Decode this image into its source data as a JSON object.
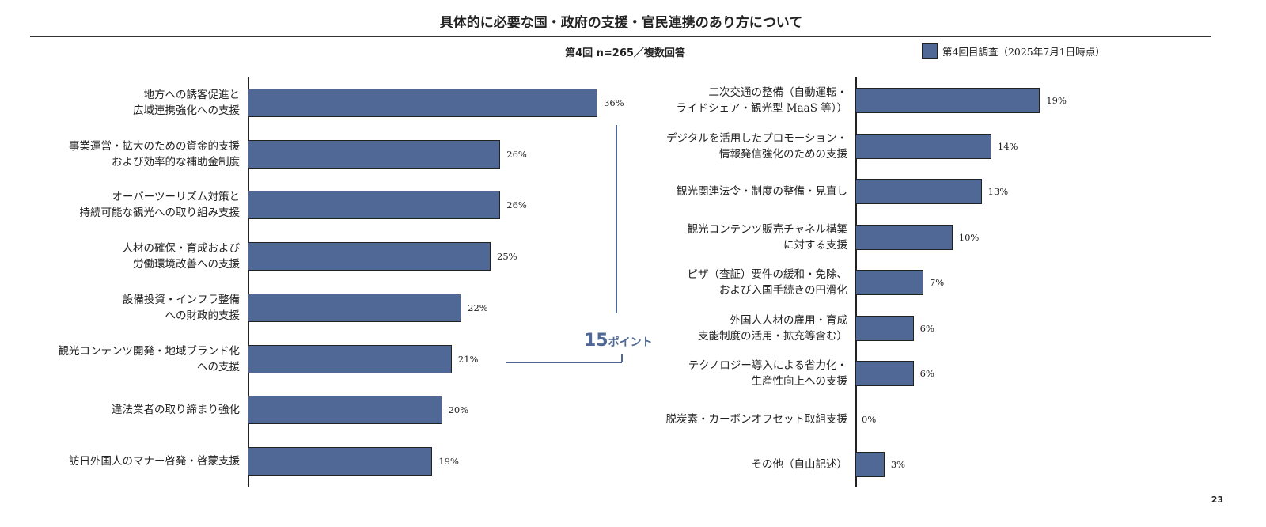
{
  "title": "具体的に必要な国・政府の支援・官民連携のあり方について",
  "subtitle": "第4回 n=265／複数回答",
  "page_number": "23",
  "annotation": {
    "number": "15",
    "unit": "ポイント"
  },
  "chart_data": [
    {
      "type": "bar",
      "orientation": "horizontal",
      "series": [
        {
          "name": "第4回目調査（2025年7月1日時点）",
          "color": "#4f6896"
        }
      ],
      "categories": [
        "地方への誘客促進と\n広域連携強化への支援",
        "事業運営・拡大のための資金的支援\nおよび効率的な補助金制度",
        "オーバーツーリズム対策と\n持続可能な観光への取り組み支援",
        "人材の確保・育成および\n労働環境改善への支援",
        "設備投資・インフラ整備\nへの財政的支援",
        "観光コンテンツ開発・地域ブランド化\nへの支援",
        "違法業者の取り締まり強化",
        "訪日外国人のマナー啓発・啓蒙支援"
      ],
      "values": [
        36,
        26,
        26,
        25,
        22,
        21,
        20,
        19
      ],
      "labels": [
        "36%",
        "26%",
        "26%",
        "25%",
        "22%",
        "21%",
        "20%",
        "19%"
      ]
    },
    {
      "type": "bar",
      "orientation": "horizontal",
      "series": [
        {
          "name": "第4回目調査（2025年7月1日時点）",
          "color": "#4f6896"
        }
      ],
      "categories": [
        "二次交通の整備（自動運転・\nライドシェア・観光型 MaaS 等））",
        "デジタルを活用したプロモーション・\n情報発信強化のための支援",
        "観光関連法令・制度の整備・見直し",
        "観光コンテンツ販売チャネル構築\nに対する支援",
        "ビザ（査証）要件の緩和・免除、\nおよび入国手続きの円滑化",
        "外国人人材の雇用・育成\n支能制度の活用・拡充等含む）",
        "テクノロジー導入による省力化・\n生産性向上への支援",
        "脱炭素・カーボンオフセット取組支援",
        "その他（自由記述）"
      ],
      "values": [
        19,
        14,
        13,
        10,
        7,
        6,
        6,
        0,
        3
      ],
      "labels": [
        "19%",
        "14%",
        "13%",
        "10%",
        "7%",
        "6%",
        "6%",
        "0%",
        "3%"
      ]
    }
  ]
}
